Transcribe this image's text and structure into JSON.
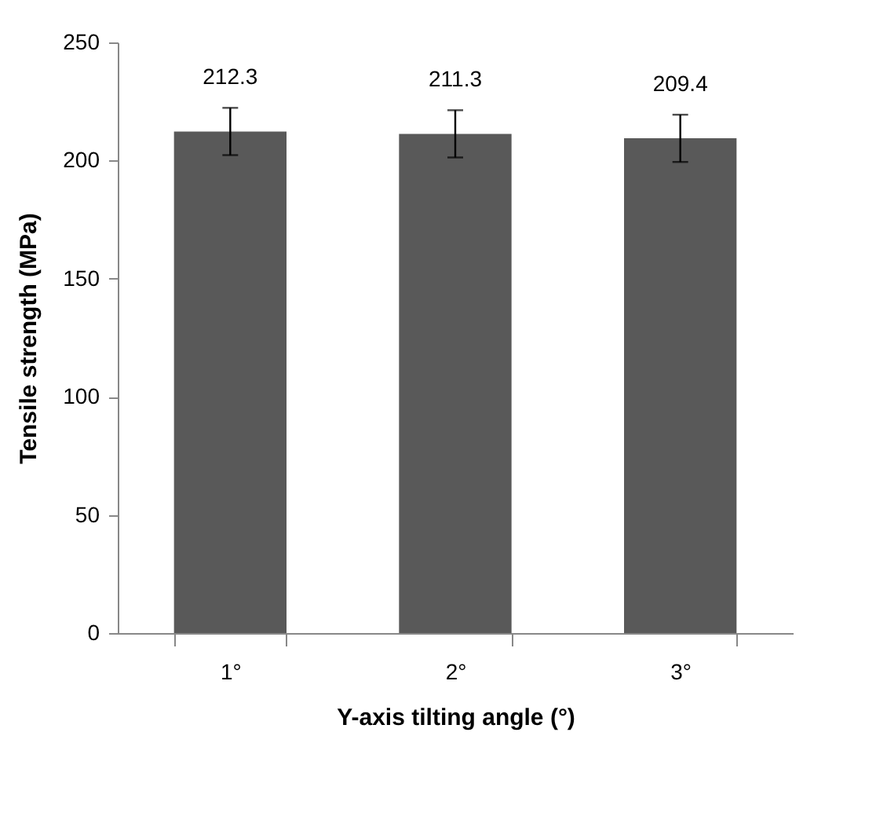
{
  "chart_data": {
    "type": "bar",
    "xlabel": "Y-axis tilting angle (°)",
    "ylabel": "Tensile strength (MPa)",
    "categories": [
      "1°",
      "2°",
      "3°"
    ],
    "values": [
      212.3,
      211.3,
      209.4
    ],
    "errors": [
      10,
      10,
      10
    ],
    "color": "#595959",
    "data_labels": true,
    "ylim": [
      0,
      250
    ],
    "yticks": [
      0,
      50,
      100,
      150,
      200,
      250
    ],
    "grid": false
  }
}
